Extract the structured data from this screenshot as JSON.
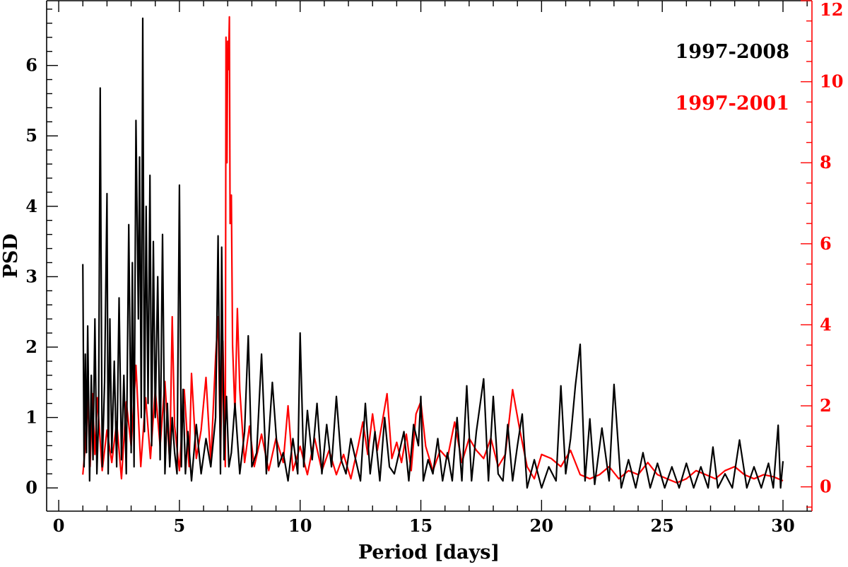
{
  "chart_data": {
    "type": "line",
    "xlabel": "Period [days]",
    "ylabel": "PSD",
    "xlim": [
      -0.5,
      31.2
    ],
    "ylim_left": [
      -0.33,
      6.92
    ],
    "ylim_right": [
      -0.6,
      12.0
    ],
    "x_ticks": [
      0,
      5,
      10,
      15,
      20,
      25,
      30
    ],
    "y_ticks_left": [
      0,
      1,
      2,
      3,
      4,
      5,
      6
    ],
    "y_ticks_right": [
      0,
      2,
      4,
      6,
      8,
      10,
      12
    ],
    "legend_position": "top-right",
    "colors": {
      "black": "#000000",
      "red": "#ff0000"
    },
    "series": [
      {
        "name": "1997-2008",
        "axis": "left",
        "color": "#000000",
        "x": [
          1.0,
          1.05,
          1.1,
          1.15,
          1.2,
          1.28,
          1.35,
          1.42,
          1.5,
          1.58,
          1.65,
          1.72,
          1.8,
          1.9,
          2.0,
          2.05,
          2.12,
          2.2,
          2.3,
          2.4,
          2.5,
          2.6,
          2.7,
          2.8,
          2.9,
          3.0,
          3.05,
          3.12,
          3.2,
          3.3,
          3.35,
          3.42,
          3.48,
          3.55,
          3.62,
          3.7,
          3.78,
          3.85,
          3.92,
          4.0,
          4.1,
          4.2,
          4.3,
          4.4,
          4.5,
          4.6,
          4.7,
          4.8,
          4.9,
          5.0,
          5.08,
          5.15,
          5.25,
          5.35,
          5.5,
          5.7,
          5.9,
          6.1,
          6.3,
          6.5,
          6.6,
          6.7,
          6.75,
          6.85,
          6.95,
          7.05,
          7.15,
          7.3,
          7.5,
          7.7,
          7.85,
          8.0,
          8.2,
          8.4,
          8.6,
          8.85,
          9.1,
          9.3,
          9.5,
          9.7,
          9.9,
          10.0,
          10.15,
          10.3,
          10.5,
          10.7,
          10.9,
          11.1,
          11.3,
          11.5,
          11.7,
          11.9,
          12.1,
          12.3,
          12.5,
          12.7,
          12.9,
          13.1,
          13.3,
          13.5,
          13.7,
          13.9,
          14.1,
          14.3,
          14.5,
          14.7,
          14.9,
          15.0,
          15.1,
          15.3,
          15.5,
          15.7,
          15.9,
          16.1,
          16.3,
          16.5,
          16.7,
          16.9,
          17.1,
          17.3,
          17.6,
          17.8,
          18.0,
          18.2,
          18.4,
          18.6,
          18.8,
          19.0,
          19.2,
          19.4,
          19.7,
          20.0,
          20.3,
          20.6,
          20.8,
          21.0,
          21.2,
          21.4,
          21.6,
          21.8,
          22.0,
          22.2,
          22.5,
          22.8,
          23.0,
          23.3,
          23.6,
          23.9,
          24.2,
          24.5,
          24.8,
          25.1,
          25.4,
          25.7,
          26.0,
          26.3,
          26.6,
          26.9,
          27.1,
          27.3,
          27.6,
          27.9,
          28.2,
          28.5,
          28.8,
          29.1,
          29.4,
          29.6,
          29.8,
          29.9,
          30.0
        ],
        "y": [
          3.18,
          0.3,
          1.9,
          0.5,
          2.3,
          0.1,
          1.6,
          0.4,
          2.4,
          0.2,
          1.0,
          5.68,
          0.3,
          1.5,
          4.18,
          0.2,
          2.4,
          0.5,
          1.8,
          0.3,
          2.7,
          0.4,
          1.6,
          0.2,
          3.74,
          0.5,
          3.2,
          0.3,
          5.22,
          2.4,
          4.7,
          1.0,
          6.67,
          0.8,
          4.0,
          1.2,
          4.44,
          0.6,
          3.5,
          1.0,
          3.0,
          0.4,
          3.6,
          0.2,
          1.2,
          0.3,
          1.0,
          0.5,
          0.2,
          4.3,
          0.3,
          1.4,
          0.2,
          0.8,
          0.1,
          0.9,
          0.2,
          0.7,
          0.3,
          1.0,
          3.58,
          0.2,
          3.42,
          0.4,
          1.3,
          0.3,
          0.5,
          1.2,
          0.2,
          0.8,
          2.16,
          0.3,
          0.5,
          1.9,
          0.2,
          1.5,
          0.3,
          0.5,
          0.1,
          0.7,
          0.2,
          2.2,
          0.3,
          1.1,
          0.4,
          1.2,
          0.2,
          0.9,
          0.3,
          1.3,
          0.4,
          0.2,
          0.7,
          0.4,
          0.1,
          1.2,
          0.2,
          0.8,
          0.1,
          1.0,
          0.3,
          0.2,
          0.5,
          0.8,
          0.1,
          0.9,
          0.6,
          1.3,
          0.1,
          0.4,
          0.2,
          0.7,
          0.1,
          0.5,
          0.1,
          1.0,
          0.1,
          1.45,
          0.1,
          0.8,
          1.55,
          0.1,
          1.3,
          0.2,
          0.1,
          0.9,
          0.1,
          0.6,
          1.05,
          0.0,
          0.4,
          0.0,
          0.3,
          0.1,
          1.45,
          0.2,
          0.7,
          1.45,
          2.04,
          0.1,
          0.98,
          0.05,
          0.85,
          0.1,
          1.47,
          0.0,
          0.4,
          0.0,
          0.5,
          0.0,
          0.35,
          0.0,
          0.3,
          0.0,
          0.35,
          0.0,
          0.3,
          0.0,
          0.58,
          0.0,
          0.2,
          0.0,
          0.68,
          0.0,
          0.3,
          0.0,
          0.35,
          0.0,
          0.89,
          0.0,
          0.38
        ]
      },
      {
        "name": "1997-2001",
        "axis": "right",
        "color": "#ff0000",
        "x": [
          1.0,
          1.1,
          1.2,
          1.3,
          1.4,
          1.5,
          1.6,
          1.8,
          2.0,
          2.2,
          2.4,
          2.6,
          2.8,
          3.0,
          3.2,
          3.4,
          3.6,
          3.8,
          4.0,
          4.2,
          4.4,
          4.6,
          4.7,
          4.8,
          5.0,
          5.2,
          5.4,
          5.5,
          5.7,
          5.9,
          6.1,
          6.3,
          6.5,
          6.6,
          6.7,
          6.8,
          6.9,
          6.93,
          6.97,
          7.0,
          7.03,
          7.07,
          7.1,
          7.15,
          7.2,
          7.3,
          7.4,
          7.5,
          7.7,
          7.9,
          8.1,
          8.4,
          8.7,
          9.0,
          9.3,
          9.5,
          9.7,
          10.0,
          10.3,
          10.6,
          10.9,
          11.2,
          11.5,
          11.8,
          12.1,
          12.4,
          12.6,
          12.8,
          13.0,
          13.2,
          13.4,
          13.6,
          13.8,
          14.0,
          14.2,
          14.4,
          14.6,
          14.8,
          15.0,
          15.2,
          15.5,
          15.8,
          16.1,
          16.4,
          16.7,
          17.0,
          17.3,
          17.6,
          17.9,
          18.2,
          18.5,
          18.8,
          19.1,
          19.4,
          19.7,
          20.0,
          20.4,
          20.8,
          21.2,
          21.6,
          22.0,
          22.4,
          22.8,
          23.2,
          23.6,
          24.0,
          24.4,
          24.8,
          25.2,
          25.6,
          26.0,
          26.4,
          26.8,
          27.2,
          27.6,
          28.0,
          28.4,
          28.8,
          29.2,
          29.6,
          30.0
        ],
        "y": [
          0.3,
          1.0,
          2.2,
          0.5,
          2.3,
          0.8,
          2.2,
          0.4,
          1.4,
          0.6,
          1.6,
          0.2,
          2.1,
          1.0,
          3.0,
          0.5,
          2.2,
          0.7,
          2.4,
          1.0,
          2.6,
          0.6,
          4.2,
          1.5,
          0.4,
          2.4,
          0.5,
          2.8,
          0.7,
          1.4,
          2.7,
          0.6,
          3.2,
          4.2,
          0.8,
          3.6,
          0.5,
          11.1,
          8.0,
          11.0,
          10.3,
          11.6,
          6.5,
          7.2,
          3.5,
          1.8,
          4.4,
          2.4,
          0.6,
          1.5,
          0.5,
          1.3,
          0.4,
          1.2,
          0.6,
          2.0,
          0.4,
          1.0,
          0.3,
          1.2,
          0.4,
          0.9,
          0.3,
          0.8,
          0.2,
          1.0,
          1.6,
          0.8,
          1.8,
          0.9,
          1.6,
          2.3,
          0.7,
          1.1,
          0.6,
          1.3,
          0.4,
          1.8,
          2.1,
          1.0,
          0.4,
          0.9,
          0.7,
          1.6,
          0.6,
          1.2,
          0.9,
          0.7,
          1.2,
          0.5,
          0.8,
          2.4,
          1.4,
          0.5,
          0.2,
          0.8,
          0.7,
          0.5,
          0.9,
          0.3,
          0.2,
          0.3,
          0.5,
          0.2,
          0.4,
          0.3,
          0.6,
          0.3,
          0.2,
          0.1,
          0.2,
          0.4,
          0.3,
          0.2,
          0.4,
          0.5,
          0.3,
          0.2,
          0.3,
          0.25,
          0.15
        ]
      }
    ]
  }
}
